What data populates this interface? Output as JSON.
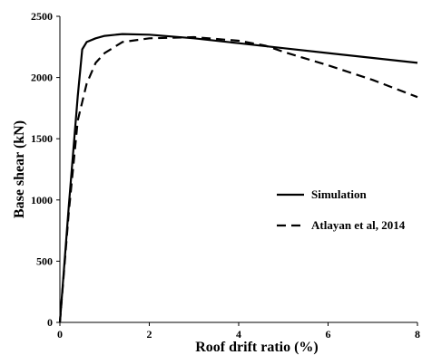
{
  "chart_data": {
    "type": "line",
    "xlabel": "Roof drift ratio (%)",
    "ylabel": "Base shear (kN)",
    "xlim": [
      0,
      8
    ],
    "ylim": [
      0,
      2500
    ],
    "xticks": [
      0,
      2,
      4,
      6,
      8
    ],
    "yticks": [
      0,
      500,
      1000,
      1500,
      2000,
      2500
    ],
    "grid": false,
    "legend_position": "right",
    "series": [
      {
        "name": "Simulation",
        "style": "solid",
        "color": "#000000",
        "points": [
          [
            0,
            0
          ],
          [
            0.2,
            950
          ],
          [
            0.4,
            1850
          ],
          [
            0.5,
            2230
          ],
          [
            0.6,
            2290
          ],
          [
            0.8,
            2320
          ],
          [
            1.0,
            2340
          ],
          [
            1.4,
            2355
          ],
          [
            2.0,
            2350
          ],
          [
            3.0,
            2320
          ],
          [
            4.0,
            2280
          ],
          [
            5.0,
            2240
          ],
          [
            6.0,
            2200
          ],
          [
            7.0,
            2160
          ],
          [
            8.0,
            2120
          ]
        ]
      },
      {
        "name": "Atlayan et al, 2014",
        "style": "dashed",
        "color": "#000000",
        "points": [
          [
            0,
            0
          ],
          [
            0.2,
            900
          ],
          [
            0.4,
            1650
          ],
          [
            0.6,
            1950
          ],
          [
            0.8,
            2120
          ],
          [
            1.0,
            2200
          ],
          [
            1.4,
            2290
          ],
          [
            2.0,
            2320
          ],
          [
            3.0,
            2330
          ],
          [
            4.0,
            2300
          ],
          [
            4.6,
            2260
          ],
          [
            5.0,
            2210
          ],
          [
            6.0,
            2100
          ],
          [
            7.0,
            1980
          ],
          [
            8.0,
            1840
          ]
        ]
      }
    ]
  }
}
